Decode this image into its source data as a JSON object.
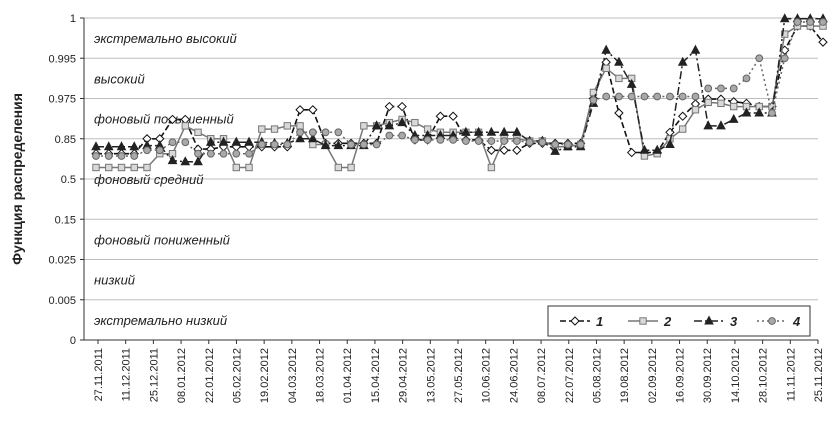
{
  "chart_data": {
    "type": "line",
    "ylabel": "Функция распределения",
    "xlabel": "",
    "y_scale": "probability",
    "y_ticks": [
      "0",
      "0.005",
      "0.025",
      "0.15",
      "0.5",
      "0.85",
      "0.975",
      "0.995",
      "1"
    ],
    "x_ticks": [
      "27.11.2011",
      "11.12.2011",
      "25.12.2011",
      "08.01.2012",
      "22.01.2012",
      "05.02.2012",
      "19.02.2012",
      "04.03.2012",
      "18.03.2012",
      "01.04.2012",
      "15.04.2012",
      "29.04.2012",
      "13.05.2012",
      "27.05.2012",
      "10.06.2012",
      "24.06.2012",
      "08.07.2012",
      "22.07.2012",
      "05.08.2012",
      "19.08.2012",
      "02.09.2012",
      "16.09.2012",
      "30.09.2012",
      "14.10.2012",
      "28.10.2012",
      "11.11.2012",
      "25.11.2012"
    ],
    "band_labels": [
      "экстремально высокий",
      "высокий",
      "фоновый повышенный",
      "фоновый средний",
      "фоновый пониженный",
      "низкий",
      "экстремально низкий"
    ],
    "legend_position": "bottom-right",
    "grid": true,
    "series": [
      {
        "name": "1",
        "dash": "6,3",
        "marker": "diamond",
        "color": "#111111",
        "values": [
          0.72,
          0.72,
          0.72,
          0.72,
          0.85,
          0.85,
          0.91,
          0.91,
          0.76,
          0.76,
          0.78,
          0.78,
          0.78,
          0.78,
          0.78,
          0.78,
          0.94,
          0.94,
          0.81,
          0.81,
          0.81,
          0.81,
          0.81,
          0.95,
          0.95,
          0.84,
          0.84,
          0.92,
          0.92,
          0.84,
          0.84,
          0.75,
          0.75,
          0.75,
          0.81,
          0.81,
          0.81,
          0.81,
          0.81,
          0.975,
          0.993,
          0.93,
          0.73,
          0.73,
          0.73,
          0.87,
          0.92,
          0.958,
          0.973,
          0.973,
          0.965,
          0.96,
          0.95,
          0.95,
          0.996,
          0.999,
          0.999,
          0.997
        ]
      },
      {
        "name": "2",
        "dash": "none",
        "marker": "square",
        "color": "#777777",
        "values": [
          0.6,
          0.6,
          0.6,
          0.6,
          0.6,
          0.72,
          0.72,
          0.89,
          0.87,
          0.85,
          0.85,
          0.6,
          0.6,
          0.88,
          0.88,
          0.89,
          0.89,
          0.8,
          0.8,
          0.6,
          0.6,
          0.89,
          0.89,
          0.9,
          0.91,
          0.9,
          0.88,
          0.87,
          0.87,
          0.87,
          0.87,
          0.6,
          0.85,
          0.85,
          0.83,
          0.83,
          0.78,
          0.78,
          0.8,
          0.978,
          0.99,
          0.985,
          0.985,
          0.7,
          0.72,
          0.85,
          0.88,
          0.94,
          0.963,
          0.96,
          0.95,
          0.95,
          0.95,
          0.95,
          0.998,
          0.999,
          0.999,
          0.999
        ]
      },
      {
        "name": "3",
        "dash": "8,3,2,3",
        "marker": "triangle",
        "color": "#222222",
        "values": [
          0.78,
          0.78,
          0.78,
          0.78,
          0.79,
          0.79,
          0.66,
          0.65,
          0.65,
          0.82,
          0.82,
          0.82,
          0.82,
          0.82,
          0.81,
          0.81,
          0.85,
          0.85,
          0.79,
          0.79,
          0.79,
          0.79,
          0.89,
          0.89,
          0.9,
          0.86,
          0.86,
          0.86,
          0.86,
          0.87,
          0.87,
          0.87,
          0.87,
          0.87,
          0.83,
          0.83,
          0.74,
          0.78,
          0.78,
          0.96,
          0.996,
          0.993,
          0.982,
          0.75,
          0.75,
          0.8,
          0.993,
          0.996,
          0.89,
          0.89,
          0.91,
          0.93,
          0.93,
          0.93,
          0.9999,
          0.9999,
          0.9999,
          0.9999
        ]
      },
      {
        "name": "4",
        "dash": "2,3",
        "marker": "circle",
        "color": "#666666",
        "values": [
          0.7,
          0.7,
          0.7,
          0.7,
          0.75,
          0.75,
          0.82,
          0.82,
          0.72,
          0.72,
          0.72,
          0.72,
          0.72,
          0.8,
          0.8,
          0.8,
          0.87,
          0.87,
          0.87,
          0.87,
          0.8,
          0.8,
          0.8,
          0.86,
          0.86,
          0.84,
          0.84,
          0.84,
          0.84,
          0.83,
          0.83,
          0.83,
          0.83,
          0.83,
          0.82,
          0.82,
          0.8,
          0.8,
          0.8,
          0.97,
          0.976,
          0.976,
          0.976,
          0.976,
          0.976,
          0.976,
          0.976,
          0.976,
          0.98,
          0.98,
          0.98,
          0.985,
          0.995,
          0.93,
          0.995,
          0.9995,
          0.9995,
          0.9995
        ]
      }
    ]
  }
}
